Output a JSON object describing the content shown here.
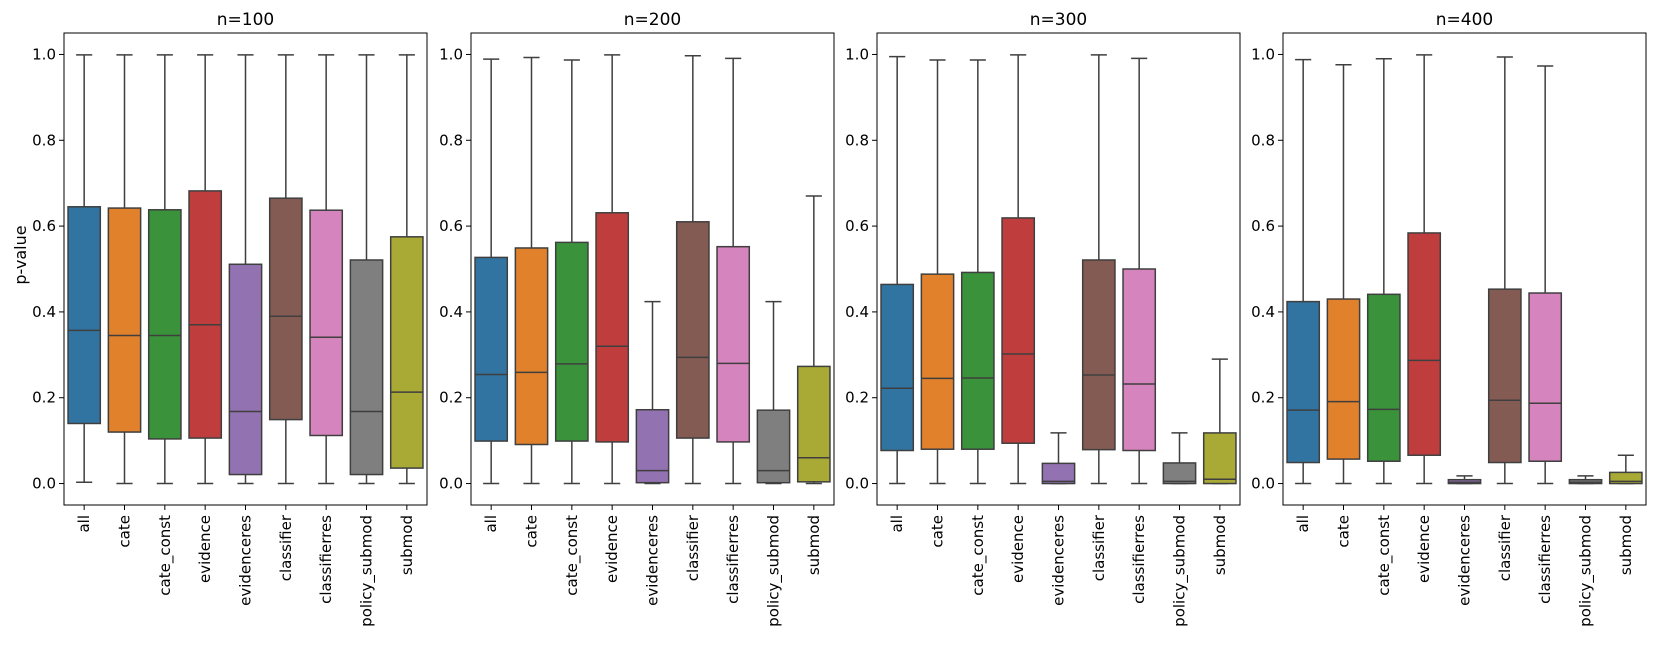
{
  "chart_data": {
    "type": "boxplot",
    "ylabel": "p-value",
    "ylim": [
      -0.05,
      1.05
    ],
    "yticks": [
      "0.0",
      "0.2",
      "0.4",
      "0.6",
      "0.8",
      "1.0"
    ],
    "categories": [
      "all",
      "cate",
      "cate_const",
      "evidence",
      "evidenceres",
      "classifier",
      "classifierres",
      "policy_submod",
      "submod"
    ],
    "colors": [
      "#3274a1",
      "#e1812c",
      "#3a923a",
      "#c03d3e",
      "#9372b2",
      "#845b53",
      "#d684bd",
      "#7f7f7f",
      "#a9aa35"
    ],
    "panels": [
      {
        "title": "n=100",
        "boxes": [
          {
            "whislo": 0.003,
            "q1": 0.14,
            "med": 0.357,
            "q3": 0.645,
            "whishi": 0.999
          },
          {
            "whislo": 0.0,
            "q1": 0.12,
            "med": 0.345,
            "q3": 0.642,
            "whishi": 0.999
          },
          {
            "whislo": 0.0,
            "q1": 0.104,
            "med": 0.345,
            "q3": 0.638,
            "whishi": 0.999
          },
          {
            "whislo": 0.0,
            "q1": 0.106,
            "med": 0.37,
            "q3": 0.682,
            "whishi": 0.999
          },
          {
            "whislo": 0.0,
            "q1": 0.021,
            "med": 0.168,
            "q3": 0.511,
            "whishi": 0.999
          },
          {
            "whislo": 0.0,
            "q1": 0.149,
            "med": 0.39,
            "q3": 0.665,
            "whishi": 0.999
          },
          {
            "whislo": 0.0,
            "q1": 0.112,
            "med": 0.341,
            "q3": 0.637,
            "whishi": 0.999
          },
          {
            "whislo": 0.0,
            "q1": 0.021,
            "med": 0.168,
            "q3": 0.521,
            "whishi": 0.999
          },
          {
            "whislo": 0.0,
            "q1": 0.036,
            "med": 0.213,
            "q3": 0.575,
            "whishi": 0.999
          }
        ]
      },
      {
        "title": "n=200",
        "boxes": [
          {
            "whislo": 0.0,
            "q1": 0.099,
            "med": 0.254,
            "q3": 0.527,
            "whishi": 0.989
          },
          {
            "whislo": 0.0,
            "q1": 0.091,
            "med": 0.259,
            "q3": 0.549,
            "whishi": 0.993
          },
          {
            "whislo": 0.0,
            "q1": 0.099,
            "med": 0.279,
            "q3": 0.562,
            "whishi": 0.987
          },
          {
            "whislo": 0.0,
            "q1": 0.097,
            "med": 0.32,
            "q3": 0.631,
            "whishi": 0.999
          },
          {
            "whislo": 0.0,
            "q1": 0.002,
            "med": 0.03,
            "q3": 0.172,
            "whishi": 0.424
          },
          {
            "whislo": 0.0,
            "q1": 0.106,
            "med": 0.294,
            "q3": 0.61,
            "whishi": 0.997
          },
          {
            "whislo": 0.0,
            "q1": 0.097,
            "med": 0.28,
            "q3": 0.552,
            "whishi": 0.991
          },
          {
            "whislo": 0.0,
            "q1": 0.002,
            "med": 0.03,
            "q3": 0.171,
            "whishi": 0.424
          },
          {
            "whislo": 0.0,
            "q1": 0.004,
            "med": 0.06,
            "q3": 0.273,
            "whishi": 0.67
          }
        ]
      },
      {
        "title": "n=300",
        "boxes": [
          {
            "whislo": 0.0,
            "q1": 0.077,
            "med": 0.222,
            "q3": 0.464,
            "whishi": 0.995
          },
          {
            "whislo": 0.0,
            "q1": 0.08,
            "med": 0.245,
            "q3": 0.488,
            "whishi": 0.987
          },
          {
            "whislo": 0.0,
            "q1": 0.08,
            "med": 0.246,
            "q3": 0.492,
            "whishi": 0.987
          },
          {
            "whislo": 0.0,
            "q1": 0.094,
            "med": 0.302,
            "q3": 0.619,
            "whishi": 0.999
          },
          {
            "whislo": 0.0,
            "q1": 0.0,
            "med": 0.005,
            "q3": 0.047,
            "whishi": 0.118
          },
          {
            "whislo": 0.0,
            "q1": 0.079,
            "med": 0.253,
            "q3": 0.521,
            "whishi": 0.999
          },
          {
            "whislo": 0.0,
            "q1": 0.077,
            "med": 0.232,
            "q3": 0.5,
            "whishi": 0.991
          },
          {
            "whislo": 0.0,
            "q1": 0.0,
            "med": 0.005,
            "q3": 0.048,
            "whishi": 0.118
          },
          {
            "whislo": 0.0,
            "q1": 0.0,
            "med": 0.01,
            "q3": 0.118,
            "whishi": 0.29
          }
        ]
      },
      {
        "title": "n=400",
        "boxes": [
          {
            "whislo": 0.0,
            "q1": 0.049,
            "med": 0.171,
            "q3": 0.424,
            "whishi": 0.988
          },
          {
            "whislo": 0.0,
            "q1": 0.057,
            "med": 0.191,
            "q3": 0.43,
            "whishi": 0.976
          },
          {
            "whislo": 0.0,
            "q1": 0.052,
            "med": 0.173,
            "q3": 0.441,
            "whishi": 0.99
          },
          {
            "whislo": 0.0,
            "q1": 0.066,
            "med": 0.287,
            "q3": 0.584,
            "whishi": 0.999
          },
          {
            "whislo": 0.0,
            "q1": 0.0,
            "med": 0.003,
            "q3": 0.009,
            "whishi": 0.018
          },
          {
            "whislo": 0.0,
            "q1": 0.049,
            "med": 0.194,
            "q3": 0.453,
            "whishi": 0.994
          },
          {
            "whislo": 0.0,
            "q1": 0.052,
            "med": 0.187,
            "q3": 0.444,
            "whishi": 0.973
          },
          {
            "whislo": 0.0,
            "q1": 0.0,
            "med": 0.003,
            "q3": 0.009,
            "whishi": 0.018
          },
          {
            "whislo": 0.0,
            "q1": 0.0,
            "med": 0.005,
            "q3": 0.026,
            "whishi": 0.066
          }
        ]
      }
    ]
  }
}
